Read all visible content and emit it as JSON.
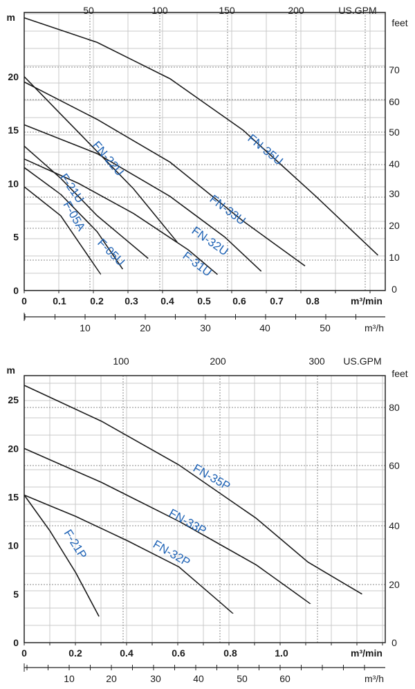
{
  "chart_data": [
    {
      "type": "line",
      "y_left": {
        "label": "m",
        "ticks": [
          0,
          5,
          10,
          15,
          20
        ],
        "range": [
          0,
          26
        ]
      },
      "y_right": {
        "label": "feet",
        "ticks": [
          0,
          10,
          20,
          30,
          40,
          50,
          60,
          70
        ]
      },
      "x_top": {
        "label": "US.GPM",
        "ticks": [
          50,
          100,
          150,
          200
        ]
      },
      "x_bottom": {
        "label": "m³/min",
        "ticks": [
          "0",
          "0.1",
          "0.2",
          "0.3",
          "0.4",
          "0.5",
          "0.6",
          "0.7",
          "0.8"
        ],
        "range": [
          0,
          0.99
        ]
      },
      "x_axis2": {
        "label": "m³/h",
        "ticks": [
          10,
          20,
          30,
          40,
          50
        ]
      },
      "grid": true,
      "series": [
        {
          "name": "FN-35U",
          "points": [
            [
              0,
              25.5
            ],
            [
              0.2,
              23.2
            ],
            [
              0.4,
              19.8
            ],
            [
              0.6,
              15.0
            ],
            [
              0.8,
              8.8
            ],
            [
              0.97,
              3.3
            ]
          ]
        },
        {
          "name": "FN-33U",
          "points": [
            [
              0,
              19.5
            ],
            [
              0.2,
              16.0
            ],
            [
              0.4,
              12.0
            ],
            [
              0.6,
              6.5
            ],
            [
              0.77,
              2.3
            ]
          ]
        },
        {
          "name": "FN-32U",
          "points": [
            [
              0,
              15.5
            ],
            [
              0.2,
              12.8
            ],
            [
              0.4,
              8.8
            ],
            [
              0.55,
              5.0
            ],
            [
              0.65,
              1.8
            ]
          ]
        },
        {
          "name": "F-31U",
          "points": [
            [
              0,
              12.3
            ],
            [
              0.15,
              10.0
            ],
            [
              0.3,
              7.2
            ],
            [
              0.45,
              3.8
            ],
            [
              0.53,
              1.5
            ]
          ]
        },
        {
          "name": "FN-22U",
          "points": [
            [
              0,
              20.0
            ],
            [
              0.1,
              16.5
            ],
            [
              0.2,
              13.0
            ],
            [
              0.3,
              9.5
            ],
            [
              0.42,
              4.5
            ]
          ]
        },
        {
          "name": "F-21U",
          "points": [
            [
              0,
              13.5
            ],
            [
              0.1,
              10.5
            ],
            [
              0.2,
              7.0
            ],
            [
              0.34,
              3.0
            ]
          ]
        },
        {
          "name": "F-05U",
          "points": [
            [
              0,
              11.5
            ],
            [
              0.1,
              9.0
            ],
            [
              0.2,
              5.5
            ],
            [
              0.27,
              2.0
            ]
          ]
        },
        {
          "name": "F-05A",
          "points": [
            [
              0,
              9.7
            ],
            [
              0.1,
              7.0
            ],
            [
              0.21,
              1.5
            ]
          ]
        }
      ]
    },
    {
      "type": "line",
      "y_left": {
        "label": "m",
        "ticks": [
          0,
          5,
          10,
          15,
          20,
          25
        ],
        "range": [
          0,
          27.5
        ]
      },
      "y_right": {
        "label": "feet",
        "ticks": [
          0,
          20,
          40,
          60,
          80
        ]
      },
      "x_top": {
        "label": "US.GPM",
        "ticks": [
          100,
          200,
          300
        ]
      },
      "x_bottom": {
        "label": "m³/min",
        "ticks": [
          "0",
          "0.2",
          "0.4",
          "0.6",
          "0.8",
          "1.0"
        ],
        "range": [
          0,
          1.4
        ]
      },
      "x_axis2": {
        "label": "m³/h",
        "ticks": [
          10,
          20,
          30,
          40,
          50,
          60
        ]
      },
      "grid": true,
      "series": [
        {
          "name": "FN-35P",
          "points": [
            [
              0,
              26.5
            ],
            [
              0.3,
              22.8
            ],
            [
              0.6,
              18.3
            ],
            [
              0.9,
              12.8
            ],
            [
              1.1,
              8.3
            ],
            [
              1.31,
              5.0
            ]
          ]
        },
        {
          "name": "FN-33P",
          "points": [
            [
              0,
              20.0
            ],
            [
              0.3,
              16.5
            ],
            [
              0.6,
              12.5
            ],
            [
              0.9,
              8.0
            ],
            [
              1.11,
              4.0
            ]
          ]
        },
        {
          "name": "FN-32P",
          "points": [
            [
              0,
              15.2
            ],
            [
              0.2,
              13.0
            ],
            [
              0.4,
              10.5
            ],
            [
              0.6,
              7.8
            ],
            [
              0.81,
              3.0
            ]
          ]
        },
        {
          "name": "F-21P",
          "points": [
            [
              0,
              15.2
            ],
            [
              0.1,
              11.5
            ],
            [
              0.2,
              7.2
            ],
            [
              0.29,
              2.7
            ]
          ]
        }
      ]
    }
  ]
}
